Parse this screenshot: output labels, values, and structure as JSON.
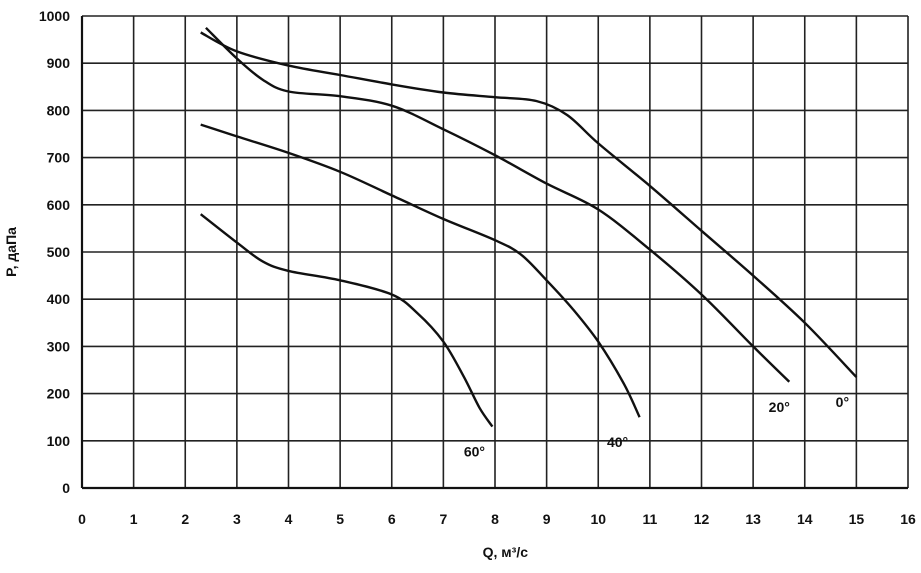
{
  "chart_data": {
    "type": "line",
    "xlabel": "Q, м³/с",
    "ylabel": "P, даПа",
    "xlim": [
      0,
      16
    ],
    "ylim": [
      0,
      1000
    ],
    "x_ticks": [
      "0",
      "1",
      "2",
      "3",
      "4",
      "5",
      "6",
      "7",
      "8",
      "9",
      "10",
      "11",
      "12",
      "13",
      "14",
      "15",
      "16"
    ],
    "y_ticks": [
      "0",
      "100",
      "200",
      "300",
      "400",
      "500",
      "600",
      "700",
      "800",
      "900",
      "1000"
    ],
    "grid": true,
    "series": [
      {
        "name": "0°",
        "x": [
          2.3,
          3.0,
          4.0,
          5.0,
          6.0,
          7.0,
          8.0,
          8.8,
          9.4,
          10.0,
          11.0,
          12.0,
          13.0,
          14.0,
          15.0
        ],
        "y": [
          965,
          925,
          895,
          875,
          855,
          838,
          828,
          820,
          790,
          730,
          640,
          545,
          450,
          350,
          235
        ]
      },
      {
        "name": "20°",
        "x": [
          2.4,
          3.0,
          3.5,
          4.0,
          5.0,
          6.0,
          7.0,
          8.0,
          9.0,
          10.0,
          11.0,
          12.0,
          13.0,
          13.7
        ],
        "y": [
          975,
          910,
          865,
          840,
          830,
          810,
          760,
          705,
          645,
          590,
          505,
          410,
          300,
          225
        ]
      },
      {
        "name": "40°",
        "x": [
          2.3,
          3.0,
          4.0,
          5.0,
          6.0,
          7.0,
          8.0,
          8.5,
          9.0,
          9.5,
          10.0,
          10.5,
          10.8
        ],
        "y": [
          770,
          745,
          710,
          670,
          620,
          570,
          525,
          495,
          440,
          380,
          310,
          220,
          150
        ]
      },
      {
        "name": "60°",
        "x": [
          2.3,
          3.0,
          3.5,
          4.0,
          5.0,
          6.0,
          6.5,
          7.0,
          7.4,
          7.7,
          7.95
        ],
        "y": [
          580,
          520,
          480,
          460,
          440,
          410,
          370,
          310,
          235,
          170,
          130
        ]
      }
    ],
    "curve_labels": [
      "60°",
      "40°",
      "20°",
      "0°"
    ]
  }
}
